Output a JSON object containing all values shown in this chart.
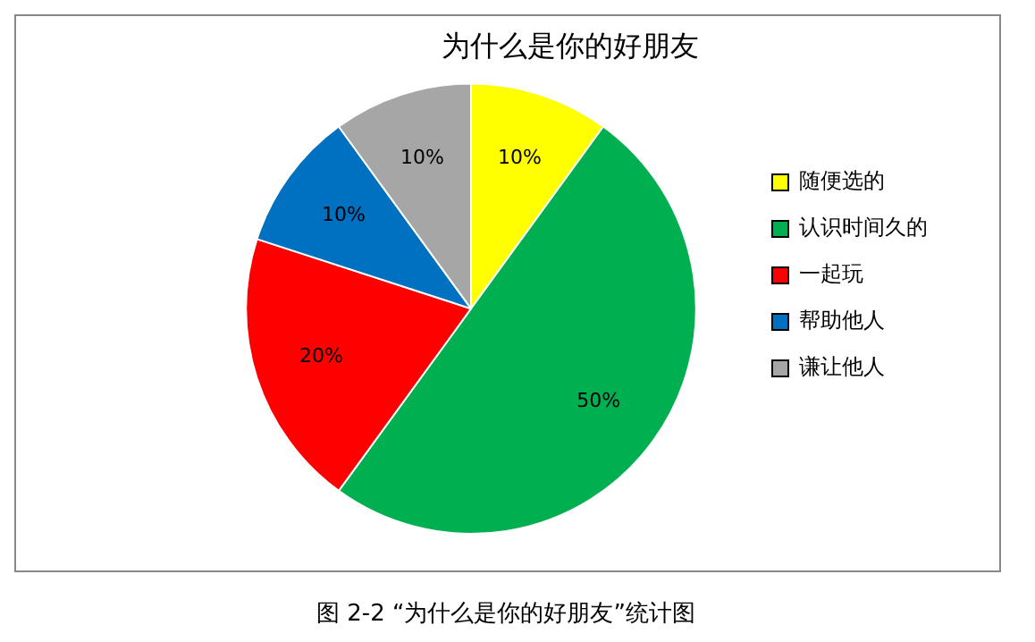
{
  "chart_data": {
    "type": "pie",
    "title": "为什么是你的好朋友",
    "categories": [
      "随便选的",
      "认识时间久的",
      "一起玩",
      "帮助他人",
      "谦让他人"
    ],
    "values": [
      10,
      50,
      20,
      10,
      10
    ],
    "colors": [
      "#ffff00",
      "#00b050",
      "#ff0000",
      "#0070c0",
      "#a6a6a6"
    ],
    "value_labels": [
      "10%",
      "50%",
      "20%",
      "10%",
      "10%"
    ],
    "legend": "right",
    "annotations": [
      "图 2-2   “为什么是你的好朋友”统计图"
    ]
  }
}
